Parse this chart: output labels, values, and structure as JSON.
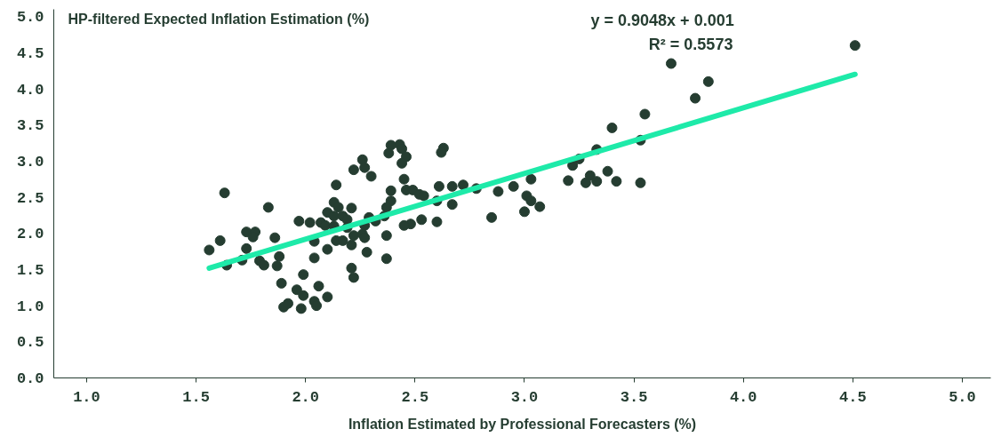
{
  "chart_data": {
    "type": "scatter",
    "xlabel": "Inflation Estimated by Professional Forecasters (%)",
    "ylabel": "HP-filtered Expected Inflation Estimation (%)",
    "annotations": [
      "y = 0.9048x + 0.001",
      "R² = 0.5573"
    ],
    "xlim": [
      0.85,
      5.13
    ],
    "ylim": [
      0,
      5.1
    ],
    "xticks": [
      {
        "value": 1,
        "label": "1.0"
      },
      1.5,
      {
        "value": 2,
        "label": "2.0"
      },
      2.5,
      {
        "value": 3,
        "label": "3.0"
      },
      3.5,
      {
        "value": 4,
        "label": "4.0"
      },
      4.5,
      {
        "value": 5,
        "label": "5.0"
      }
    ],
    "yticks": [
      {
        "value": 0,
        "label": "0.0"
      },
      0.5,
      {
        "value": 1,
        "label": "1.0"
      },
      1.5,
      {
        "value": 2,
        "label": "2.0"
      },
      2.5,
      {
        "value": 3,
        "label": "3.0"
      },
      3.5,
      {
        "value": 4,
        "label": "4.0"
      },
      4.5,
      {
        "value": 5,
        "label": "5.0"
      }
    ],
    "grid": false,
    "series": [
      {
        "marker": "circle",
        "color": "#253d31",
        "x": [
          1.56,
          1.61,
          1.63,
          1.64,
          1.73,
          1.77,
          1.76,
          1.73,
          1.71,
          1.79,
          1.81,
          1.86,
          1.88,
          1.87,
          1.89,
          1.99,
          1.96,
          1.99,
          2.06,
          2.1,
          1.9,
          1.92,
          1.98,
          2.04,
          2.05,
          2.04,
          2.04,
          2.1,
          1.97,
          2.02,
          2.07,
          2.09,
          2.1,
          2.13,
          2.14,
          2.15,
          2.13,
          2.17,
          2.21,
          2.19,
          2.13,
          2.19,
          2.14,
          2.17,
          2.21,
          2.22,
          2.21,
          2.22,
          2.22,
          2.39,
          2.43,
          2.44,
          2.38,
          2.46,
          2.44,
          2.63,
          2.62,
          2.26,
          2.27,
          2.3,
          2.45,
          2.39,
          2.46,
          2.49,
          2.52,
          2.54,
          2.61,
          2.67,
          2.72,
          2.78,
          2.88,
          2.95,
          3.03,
          3.01,
          3.03,
          3.07,
          3.0,
          2.85,
          2.67,
          2.6,
          2.6,
          2.53,
          2.48,
          2.45,
          2.39,
          2.37,
          2.36,
          2.29,
          2.32,
          2.27,
          2.37,
          2.26,
          2.27,
          2.28,
          2.37,
          1.83,
          4.51,
          3.67,
          3.84,
          3.78,
          3.55,
          3.4,
          3.53,
          3.33,
          3.25,
          3.22,
          3.2,
          3.28,
          3.3,
          3.33,
          3.38,
          3.42,
          3.53
        ],
        "values": [
          1.77,
          1.9,
          2.56,
          1.56,
          2.02,
          2.02,
          1.95,
          1.79,
          1.63,
          1.62,
          1.56,
          1.94,
          1.68,
          1.55,
          1.31,
          1.43,
          1.22,
          1.14,
          1.27,
          1.12,
          0.98,
          1.03,
          0.96,
          1.06,
          1.0,
          1.66,
          1.89,
          1.78,
          2.17,
          2.15,
          2.15,
          2.11,
          2.29,
          2.43,
          2.67,
          2.36,
          2.24,
          2.24,
          2.35,
          2.19,
          2.1,
          2.08,
          1.9,
          1.9,
          1.84,
          1.97,
          1.52,
          1.39,
          2.88,
          3.22,
          3.23,
          3.17,
          3.11,
          3.06,
          2.97,
          3.18,
          3.12,
          3.02,
          2.91,
          2.79,
          2.75,
          2.59,
          2.6,
          2.6,
          2.54,
          2.52,
          2.65,
          2.65,
          2.67,
          2.62,
          2.58,
          2.65,
          2.75,
          2.52,
          2.45,
          2.37,
          2.3,
          2.22,
          2.4,
          2.45,
          2.16,
          2.19,
          2.13,
          2.11,
          2.45,
          2.36,
          2.24,
          2.22,
          2.17,
          2.11,
          1.97,
          1.99,
          1.94,
          1.74,
          1.65,
          2.36,
          4.6,
          4.35,
          4.1,
          3.87,
          3.65,
          3.46,
          3.29,
          3.16,
          3.03,
          2.94,
          2.73,
          2.7,
          2.8,
          2.72,
          2.86,
          2.72,
          2.7
        ]
      },
      {
        "type": "line",
        "color": "#1eeaa9",
        "x": [
          1.56,
          4.51
        ],
        "values": [
          1.52,
          4.2
        ]
      }
    ]
  }
}
